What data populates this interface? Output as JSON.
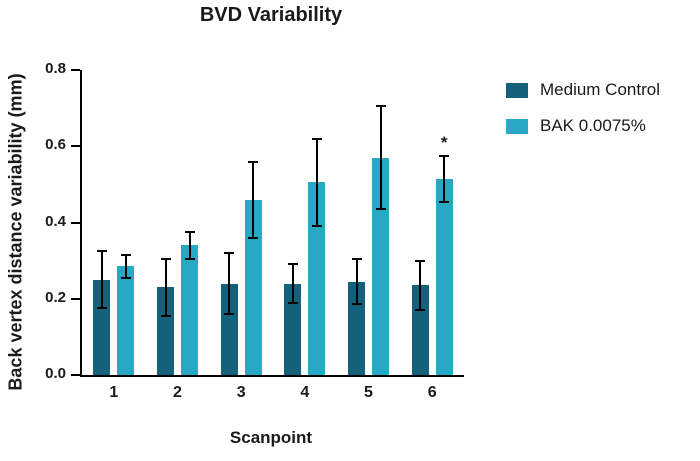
{
  "chart_data": {
    "type": "bar",
    "title": "BVD Variability",
    "xlabel": "Scanpoint",
    "ylabel": "Back vertex distance variability (mm)",
    "categories": [
      "1",
      "2",
      "3",
      "4",
      "5",
      "6"
    ],
    "series": [
      {
        "name": "Medium Control",
        "color": "#15607a",
        "values": [
          0.25,
          0.23,
          0.24,
          0.24,
          0.245,
          0.235
        ],
        "errors": [
          0.075,
          0.075,
          0.08,
          0.05,
          0.06,
          0.065
        ]
      },
      {
        "name": "BAK 0.0075%",
        "color": "#2ba7c6",
        "values": [
          0.285,
          0.34,
          0.46,
          0.505,
          0.57,
          0.515
        ],
        "errors": [
          0.03,
          0.035,
          0.1,
          0.115,
          0.135,
          0.06
        ]
      }
    ],
    "ylim": [
      0,
      0.8
    ],
    "yticks": [
      0,
      0.2,
      0.4,
      0.6,
      0.8
    ],
    "ytick_labels": [
      "0.0",
      "0.2",
      "0.4",
      "0.6",
      "0.8"
    ],
    "grid": false,
    "legend_position": "right",
    "annotation": {
      "text": "*",
      "series_index": 1,
      "category_index": 5
    },
    "error_bar_color": "#000000",
    "axis_color": "#000000"
  }
}
